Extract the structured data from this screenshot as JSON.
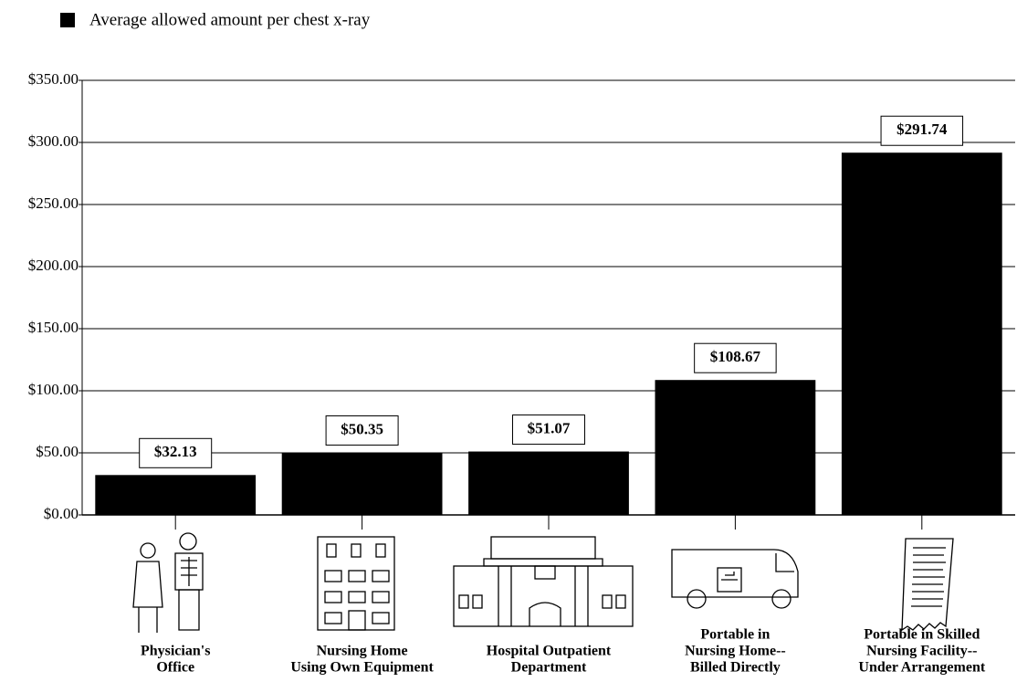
{
  "chart_data": {
    "type": "bar",
    "series": [
      {
        "name": "Average allowed amount per chest x-ray",
        "color": "#000000",
        "values": [
          32.13,
          50.35,
          51.07,
          108.67,
          291.74
        ],
        "value_labels": [
          "$32.13",
          "$50.35",
          "$51.07",
          "$108.67",
          "$291.74"
        ]
      }
    ],
    "categories": [
      [
        "Physician's",
        "Office"
      ],
      [
        "Nursing Home",
        "Using Own Equipment"
      ],
      [
        "Hospital Outpatient",
        "Department"
      ],
      [
        "Portable in",
        "Nursing Home--",
        "Billed Directly"
      ],
      [
        "Portable in Skilled",
        "Nursing Facility--",
        "Under Arrangement"
      ]
    ],
    "ylim": [
      0,
      350
    ],
    "yticks": [
      {
        "value": 0,
        "label": "$0.00"
      },
      {
        "value": 50,
        "label": "$50.00"
      },
      {
        "value": 100,
        "label": "$100.00"
      },
      {
        "value": 150,
        "label": "$150.00"
      },
      {
        "value": 200,
        "label": "$200.00"
      },
      {
        "value": 250,
        "label": "$250.00"
      },
      {
        "value": 300,
        "label": "$300.00"
      },
      {
        "value": 350,
        "label": "$350.00"
      }
    ],
    "grid": true,
    "legend": "top-left"
  }
}
